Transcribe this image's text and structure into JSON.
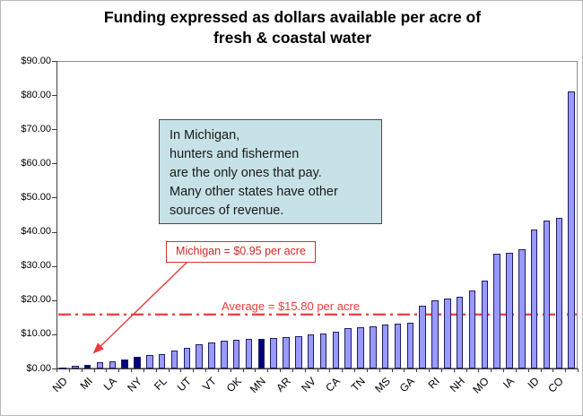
{
  "title": {
    "line1": "Funding expressed as dollars available per acre of",
    "line2": "fresh & coastal water"
  },
  "colors": {
    "bar_light": "#9999ff",
    "bar_dark": "#000080",
    "bar_border": "#1e1e5e",
    "red_line": "#ee3b3b",
    "red_text": "#cc2929",
    "gridline": "#a3a3a3",
    "infobox_bg": "#c7e2e6"
  },
  "chart_data": {
    "type": "bar",
    "title": "Funding expressed as dollars available per acre of fresh & coastal water",
    "xlabel": "",
    "ylabel": "",
    "ylim": [
      0,
      90
    ],
    "grid": true,
    "legend": "none",
    "yticks": [
      {
        "value": 0,
        "label": "$0.00"
      },
      {
        "value": 10,
        "label": "$10.00"
      },
      {
        "value": 20,
        "label": "$20.00"
      },
      {
        "value": 30,
        "label": "$30.00"
      },
      {
        "value": 40,
        "label": "$40.00"
      },
      {
        "value": 50,
        "label": "$50.00"
      },
      {
        "value": 60,
        "label": "$60.00"
      },
      {
        "value": 70,
        "label": "$70.00"
      },
      {
        "value": 80,
        "label": "$80.00"
      },
      {
        "value": 90,
        "label": "$90.00"
      }
    ],
    "bars": [
      {
        "label": "ND",
        "value": 0.3,
        "dark": true
      },
      {
        "label": "",
        "value": 0.7,
        "dark": false
      },
      {
        "label": "MI",
        "value": 0.95,
        "dark": true
      },
      {
        "label": "",
        "value": 1.9,
        "dark": false
      },
      {
        "label": "LA",
        "value": 2.1,
        "dark": false
      },
      {
        "label": "",
        "value": 2.7,
        "dark": true
      },
      {
        "label": "NY",
        "value": 3.4,
        "dark": true
      },
      {
        "label": "",
        "value": 3.9,
        "dark": false
      },
      {
        "label": "FL",
        "value": 4.1,
        "dark": false
      },
      {
        "label": "",
        "value": 5.2,
        "dark": false
      },
      {
        "label": "UT",
        "value": 6.0,
        "dark": false
      },
      {
        "label": "",
        "value": 7.1,
        "dark": false
      },
      {
        "label": "VT",
        "value": 7.6,
        "dark": false
      },
      {
        "label": "",
        "value": 8.1,
        "dark": false
      },
      {
        "label": "OK",
        "value": 8.4,
        "dark": false
      },
      {
        "label": "",
        "value": 8.6,
        "dark": false
      },
      {
        "label": "MN",
        "value": 8.7,
        "dark": true
      },
      {
        "label": "",
        "value": 8.9,
        "dark": false
      },
      {
        "label": "AR",
        "value": 9.1,
        "dark": false
      },
      {
        "label": "",
        "value": 9.5,
        "dark": false
      },
      {
        "label": "NV",
        "value": 10.0,
        "dark": false
      },
      {
        "label": "",
        "value": 10.3,
        "dark": false
      },
      {
        "label": "CA",
        "value": 10.7,
        "dark": false
      },
      {
        "label": "",
        "value": 11.8,
        "dark": false
      },
      {
        "label": "TN",
        "value": 12.0,
        "dark": false
      },
      {
        "label": "",
        "value": 12.3,
        "dark": false
      },
      {
        "label": "MS",
        "value": 12.9,
        "dark": false
      },
      {
        "label": "",
        "value": 13.1,
        "dark": false
      },
      {
        "label": "GA",
        "value": 13.3,
        "dark": false
      },
      {
        "label": "",
        "value": 18.3,
        "dark": false
      },
      {
        "label": "RI",
        "value": 19.9,
        "dark": false
      },
      {
        "label": "",
        "value": 20.5,
        "dark": false
      },
      {
        "label": "NH",
        "value": 21.0,
        "dark": false
      },
      {
        "label": "",
        "value": 22.9,
        "dark": false
      },
      {
        "label": "MO",
        "value": 25.7,
        "dark": false
      },
      {
        "label": "",
        "value": 33.6,
        "dark": false
      },
      {
        "label": "IA",
        "value": 33.9,
        "dark": false
      },
      {
        "label": "",
        "value": 34.9,
        "dark": false
      },
      {
        "label": "ID",
        "value": 40.6,
        "dark": false
      },
      {
        "label": "",
        "value": 43.2,
        "dark": false
      },
      {
        "label": "CO",
        "value": 44.0,
        "dark": false
      },
      {
        "label": "",
        "value": 81.2,
        "dark": false
      }
    ],
    "average_line": {
      "value": 15.8,
      "label": "Average = $15.80 per acre",
      "style": "dash-dot"
    },
    "michigan_callout": {
      "label": "Michigan = $0.95 per acre",
      "points_to": "MI"
    },
    "infobox_lines": [
      "In Michigan,",
      "hunters and fishermen",
      "are the only ones that pay.",
      "Many other states have other",
      "sources of revenue."
    ]
  }
}
